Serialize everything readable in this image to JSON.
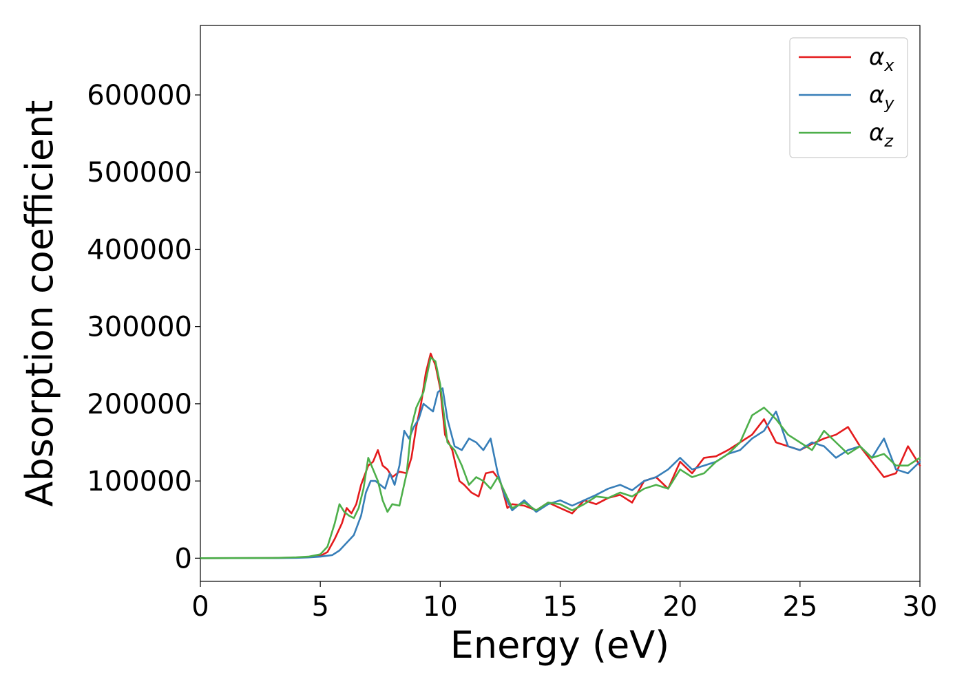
{
  "chart_data": {
    "type": "line",
    "title": "",
    "xlabel": "Energy (eV)",
    "ylabel": "Absorption coefficient",
    "xlim": [
      0,
      30
    ],
    "ylim": [
      -30000,
      690000
    ],
    "xticks": [
      0,
      5,
      10,
      15,
      20,
      25,
      30
    ],
    "yticks": [
      0,
      100000,
      200000,
      300000,
      400000,
      500000,
      600000
    ],
    "grid": false,
    "legend": "top-right",
    "series": [
      {
        "name": "αx",
        "label_base": "α",
        "label_sub": "x",
        "color": "#e41a1c",
        "x": [
          0,
          3,
          4,
          4.5,
          5,
          5.3,
          5.6,
          5.9,
          6.1,
          6.3,
          6.5,
          6.7,
          7.0,
          7.2,
          7.4,
          7.6,
          7.8,
          8.0,
          8.3,
          8.6,
          8.8,
          9.0,
          9.2,
          9.4,
          9.6,
          9.8,
          10.0,
          10.2,
          10.5,
          10.8,
          11.0,
          11.3,
          11.6,
          11.9,
          12.2,
          12.5,
          12.8,
          13.0,
          13.5,
          14.0,
          14.5,
          15.0,
          15.5,
          16.0,
          16.5,
          17.0,
          17.5,
          18.0,
          18.5,
          19.0,
          19.5,
          20.0,
          20.5,
          21.0,
          21.5,
          22.0,
          22.5,
          23.0,
          23.5,
          24.0,
          24.5,
          25.0,
          25.5,
          26.0,
          26.5,
          27.0,
          27.5,
          28.0,
          28.5,
          29.0,
          29.5,
          30.0
        ],
        "y": [
          0,
          200,
          800,
          1500,
          3000,
          8000,
          25000,
          45000,
          65000,
          58000,
          70000,
          95000,
          120000,
          125000,
          140000,
          120000,
          115000,
          105000,
          112000,
          110000,
          130000,
          170000,
          200000,
          240000,
          265000,
          250000,
          220000,
          160000,
          140000,
          100000,
          95000,
          85000,
          80000,
          110000,
          112000,
          100000,
          65000,
          70000,
          68000,
          62000,
          72000,
          65000,
          58000,
          75000,
          70000,
          78000,
          82000,
          72000,
          100000,
          105000,
          90000,
          125000,
          110000,
          130000,
          132000,
          140000,
          150000,
          160000,
          180000,
          150000,
          145000,
          140000,
          148000,
          155000,
          160000,
          170000,
          145000,
          125000,
          105000,
          110000,
          145000,
          120000
        ]
      },
      {
        "name": "αy",
        "label_base": "α",
        "label_sub": "y",
        "color": "#377eb8",
        "x": [
          0,
          3,
          4,
          4.5,
          5,
          5.5,
          5.8,
          6.1,
          6.4,
          6.7,
          6.9,
          7.1,
          7.3,
          7.5,
          7.7,
          7.9,
          8.1,
          8.3,
          8.5,
          8.7,
          8.9,
          9.1,
          9.3,
          9.5,
          9.7,
          9.9,
          10.1,
          10.3,
          10.6,
          10.9,
          11.2,
          11.5,
          11.8,
          12.1,
          12.4,
          12.7,
          13.0,
          13.5,
          14.0,
          14.5,
          15.0,
          15.5,
          16.0,
          16.5,
          17.0,
          17.5,
          18.0,
          18.5,
          19.0,
          19.5,
          20.0,
          20.5,
          21.0,
          21.5,
          22.0,
          22.5,
          23.0,
          23.5,
          24.0,
          24.5,
          25.0,
          25.5,
          26.0,
          26.5,
          27.0,
          27.5,
          28.0,
          28.5,
          29.0,
          29.5,
          30.0
        ],
        "y": [
          0,
          100,
          500,
          1000,
          2000,
          4000,
          10000,
          20000,
          30000,
          55000,
          85000,
          100000,
          100000,
          95000,
          90000,
          110000,
          95000,
          120000,
          165000,
          155000,
          170000,
          180000,
          200000,
          195000,
          190000,
          215000,
          220000,
          180000,
          145000,
          140000,
          155000,
          150000,
          140000,
          155000,
          110000,
          80000,
          62000,
          75000,
          60000,
          70000,
          75000,
          68000,
          75000,
          82000,
          90000,
          95000,
          88000,
          100000,
          105000,
          115000,
          130000,
          115000,
          120000,
          125000,
          135000,
          140000,
          155000,
          165000,
          190000,
          145000,
          140000,
          150000,
          145000,
          130000,
          140000,
          145000,
          130000,
          155000,
          115000,
          110000,
          125000
        ]
      },
      {
        "name": "αz",
        "label_base": "α",
        "label_sub": "z",
        "color": "#4daf4a",
        "x": [
          0,
          3,
          4,
          4.5,
          5,
          5.3,
          5.6,
          5.8,
          6.0,
          6.2,
          6.4,
          6.6,
          6.8,
          7.0,
          7.2,
          7.4,
          7.6,
          7.8,
          8.0,
          8.3,
          8.6,
          8.8,
          9.0,
          9.3,
          9.6,
          9.8,
          10.0,
          10.3,
          10.6,
          10.9,
          11.2,
          11.5,
          11.8,
          12.1,
          12.4,
          12.7,
          13.0,
          13.5,
          14.0,
          14.5,
          15.0,
          15.5,
          16.0,
          16.5,
          17.0,
          17.5,
          18.0,
          18.5,
          19.0,
          19.5,
          20.0,
          20.5,
          21.0,
          21.5,
          22.0,
          22.5,
          23.0,
          23.5,
          24.0,
          24.5,
          25.0,
          25.5,
          26.0,
          26.5,
          27.0,
          27.5,
          28.0,
          28.5,
          29.0,
          29.5,
          30.0
        ],
        "y": [
          0,
          300,
          1200,
          2000,
          5000,
          15000,
          45000,
          70000,
          60000,
          55000,
          52000,
          65000,
          90000,
          130000,
          115000,
          100000,
          75000,
          60000,
          70000,
          68000,
          110000,
          170000,
          195000,
          215000,
          260000,
          255000,
          225000,
          150000,
          140000,
          120000,
          95000,
          105000,
          100000,
          90000,
          105000,
          85000,
          65000,
          72000,
          62000,
          72000,
          70000,
          62000,
          70000,
          80000,
          78000,
          85000,
          80000,
          90000,
          95000,
          90000,
          115000,
          105000,
          110000,
          125000,
          135000,
          150000,
          185000,
          195000,
          180000,
          160000,
          150000,
          140000,
          165000,
          150000,
          135000,
          145000,
          130000,
          135000,
          120000,
          120000,
          130000
        ]
      }
    ]
  }
}
